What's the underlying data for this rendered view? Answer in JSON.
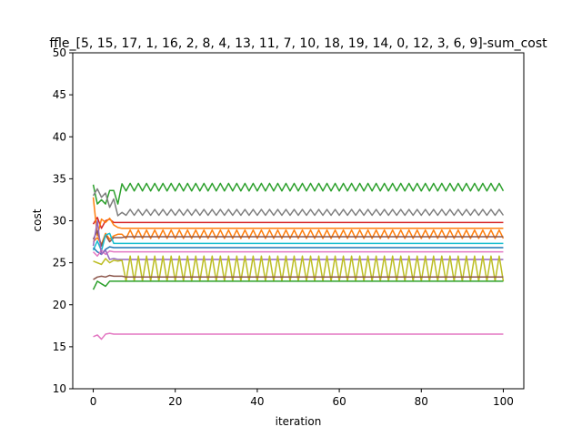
{
  "chart_data": {
    "type": "line",
    "title": "ffle_[5, 15, 17, 1, 16, 2, 8, 4, 13, 11, 7, 10, 18, 19, 14, 0, 12, 3, 6, 9]-sum_cost",
    "xlabel": "iteration",
    "ylabel": "cost",
    "xlim": [
      -5,
      105
    ],
    "ylim": [
      10,
      50
    ],
    "xticks": [
      0,
      20,
      40,
      60,
      80,
      100
    ],
    "yticks": [
      10,
      15,
      20,
      25,
      30,
      35,
      40,
      45,
      50
    ],
    "grid": false,
    "x_max": 100,
    "series": [
      {
        "color": "#2ca02c",
        "initial": [
          34.3,
          32.0,
          32.5,
          32.0,
          33.6,
          33.6,
          32.0,
          34.4
        ],
        "settle_at": 7,
        "base": 34.0,
        "amp": 0.45,
        "period": 2
      },
      {
        "color": "#7f7f7f",
        "initial": [
          33.0,
          33.8,
          32.8,
          33.3,
          31.6,
          32.6,
          30.6,
          31.0
        ],
        "settle_at": 7,
        "base": 31.0,
        "amp": 0.35,
        "period": 2
      },
      {
        "color": "#d62728",
        "initial": [
          29.6,
          30.4,
          29.1,
          30.0,
          30.2,
          29.8,
          29.8,
          29.8
        ],
        "settle_at": 7,
        "base": 29.8,
        "amp": 0,
        "period": 2
      },
      {
        "color": "#ff7f0e",
        "initial": [
          32.8,
          28.2,
          30.2,
          29.8,
          30.3,
          29.5,
          29.2,
          29.1
        ],
        "settle_at": 7,
        "base": 29.1,
        "amp": 0,
        "period": 2
      },
      {
        "color": "#ff7f0e",
        "initial": [
          27.5,
          28.0,
          27.2,
          28.5,
          27.8,
          28.2,
          28.4,
          28.4
        ],
        "settle_at": 7,
        "base": 28.4,
        "amp": 0.5,
        "period": 2
      },
      {
        "color": "#8c564b",
        "initial": [
          27.8,
          28.8,
          27.0,
          28.3,
          27.5,
          28.0,
          28.0,
          28.0
        ],
        "settle_at": 7,
        "base": 28.1,
        "amp": 0,
        "period": 2
      },
      {
        "color": "#17becf",
        "initial": [
          26.5,
          27.6,
          26.4,
          28.3,
          28.5,
          27.3,
          27.3,
          27.3
        ],
        "settle_at": 7,
        "base": 27.3,
        "amp": 0,
        "period": 2
      },
      {
        "color": "#1f77b4",
        "initial": [
          26.8,
          26.3,
          26.0,
          26.6,
          26.9,
          26.8,
          26.8,
          26.8
        ],
        "settle_at": 7,
        "base": 26.8,
        "amp": 0,
        "period": 2
      },
      {
        "color": "#e377c2",
        "initial": [
          26.3,
          25.8,
          26.5,
          26.0,
          26.4,
          26.3,
          26.3,
          26.3
        ],
        "settle_at": 7,
        "base": 26.3,
        "amp": 0,
        "period": 2
      },
      {
        "color": "#9467bd",
        "initial": [
          27.0,
          30.0,
          26.0,
          26.5,
          25.4,
          25.5,
          25.4,
          25.4
        ],
        "settle_at": 7,
        "base": 25.4,
        "amp": 0,
        "period": 2
      },
      {
        "color": "#bcbd22",
        "initial": [
          25.2,
          25.0,
          24.8,
          25.5,
          25.0,
          25.3,
          25.2,
          25.3
        ],
        "settle_at": 7,
        "base": 24.3,
        "amp": 1.5,
        "period": 2
      },
      {
        "color": "#8c564b",
        "initial": [
          23.0,
          23.3,
          23.4,
          23.3,
          23.5,
          23.4,
          23.4,
          23.4
        ],
        "settle_at": 7,
        "base": 23.3,
        "amp": 0,
        "period": 2
      },
      {
        "color": "#2ca02c",
        "initial": [
          21.8,
          22.8,
          22.5,
          22.2,
          22.8,
          22.8,
          22.8,
          22.8
        ],
        "settle_at": 7,
        "base": 22.8,
        "amp": 0,
        "period": 2
      },
      {
        "color": "#e377c2",
        "initial": [
          16.2,
          16.4,
          15.9,
          16.5,
          16.6,
          16.5,
          16.5,
          16.5
        ],
        "settle_at": 7,
        "base": 16.5,
        "amp": 0,
        "period": 2
      }
    ]
  }
}
